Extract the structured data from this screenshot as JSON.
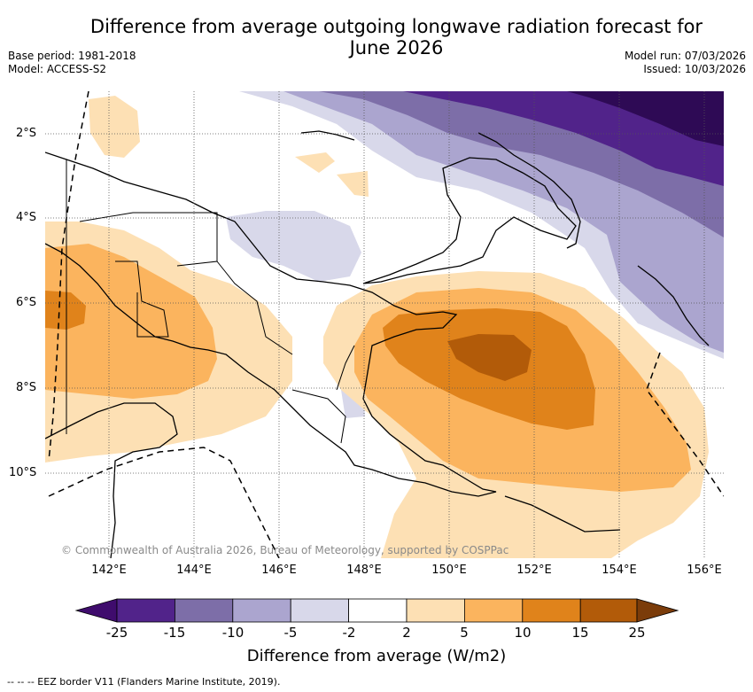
{
  "title": "Difference from average outgoing longwave radiation forecast for June 2026",
  "title_line1": "Difference from average outgoing longwave radiation forecast for",
  "title_line2": "June 2026",
  "base_period": "Base period: 1981-2018",
  "model": "Model: ACCESS-S2",
  "model_run": "Model run: 07/03/2026",
  "issued": "Issued: 10/03/2026",
  "lat_labels": [
    "2°S",
    "4°S",
    "6°S",
    "8°S",
    "10°S"
  ],
  "lon_labels": [
    "142°E",
    "144°E",
    "146°E",
    "148°E",
    "150°E",
    "152°E",
    "154°E",
    "156°E"
  ],
  "copyright": "© Commonwealth of Australia 2026, Bureau of Meteorology, supported by COSPPac",
  "colorbar": {
    "ticks": [
      "-25",
      "-15",
      "-10",
      "-5",
      "-2",
      "2",
      "5",
      "10",
      "15",
      "25"
    ],
    "colors": [
      "#3f0c6d",
      "#51238a",
      "#7d6ea8",
      "#aba5cf",
      "#d8d8ea",
      "#ffffff",
      "#fde0b4",
      "#fbb45e",
      "#e0831b",
      "#b25b09",
      "#7b3c0a"
    ],
    "label": "Difference from average (W/m2)"
  },
  "legend_note": "--  --  -- EEZ border V11 (Flanders Marine Institute, 2019)."
}
